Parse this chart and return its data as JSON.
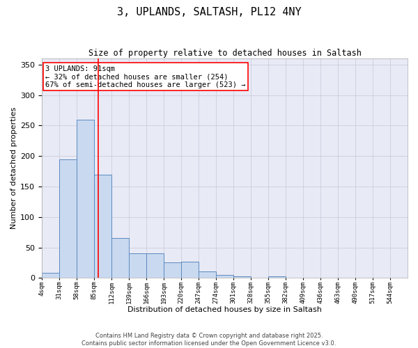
{
  "title": "3, UPLANDS, SALTASH, PL12 4NY",
  "subtitle": "Size of property relative to detached houses in Saltash",
  "xlabel": "Distribution of detached houses by size in Saltash",
  "ylabel": "Number of detached properties",
  "annotation_line1": "3 UPLANDS: 91sqm",
  "annotation_line2": "← 32% of detached houses are smaller (254)",
  "annotation_line3": "67% of semi-detached houses are larger (523) →",
  "property_size_sqm": 91,
  "bar_labels": [
    "4sqm",
    "31sqm",
    "58sqm",
    "85sqm",
    "112sqm",
    "139sqm",
    "166sqm",
    "193sqm",
    "220sqm",
    "247sqm",
    "274sqm",
    "301sqm",
    "328sqm",
    "355sqm",
    "382sqm",
    "409sqm",
    "436sqm",
    "463sqm",
    "490sqm",
    "517sqm",
    "544sqm"
  ],
  "bar_edges": [
    4,
    31,
    58,
    85,
    112,
    139,
    166,
    193,
    220,
    247,
    274,
    301,
    328,
    355,
    382,
    409,
    436,
    463,
    490,
    517,
    544
  ],
  "bar_heights": [
    9,
    195,
    260,
    170,
    65,
    40,
    40,
    26,
    27,
    11,
    5,
    3,
    0,
    3,
    0,
    0,
    1,
    0,
    0,
    0,
    1
  ],
  "bar_color": "#c9d9f0",
  "bar_edge_color": "#5b8abf",
  "bar_edge_width": 0.7,
  "grid_color": "#c8c8d8",
  "background_color": "#e8eaf6",
  "red_line_x": 91,
  "ylim": [
    0,
    360
  ],
  "yticks": [
    0,
    50,
    100,
    150,
    200,
    250,
    300,
    350
  ],
  "copyright_line1": "Contains HM Land Registry data © Crown copyright and database right 2025.",
  "copyright_line2": "Contains public sector information licensed under the Open Government Licence v3.0."
}
